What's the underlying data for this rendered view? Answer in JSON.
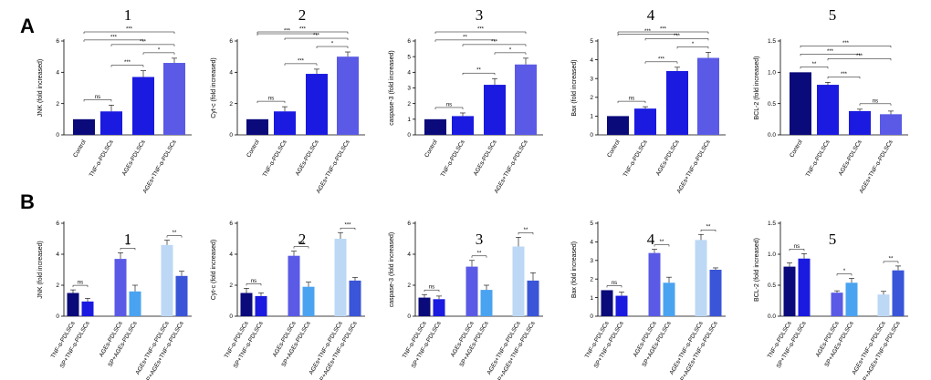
{
  "figure": {
    "row_labels": [
      "A",
      "B"
    ],
    "colors": {
      "navy": "#0a0a7a",
      "blue": "#1a1ae0",
      "periwinkle": "#5a5ae6",
      "light_blue": "#4aa3f0",
      "pale_blue": "#bcd8f5",
      "medium_blue": "#3a55d8"
    }
  },
  "chart_data": [
    {
      "id": "A1",
      "row": "A",
      "number": "1",
      "type": "bar",
      "ylabel": "JNK (fold increased)",
      "ylim": [
        0,
        6
      ],
      "yticks": [
        0,
        2,
        4,
        6
      ],
      "categories": [
        "Control",
        "TNF-α-PDLSCs",
        "AGEs-PDLSCs",
        "AGEs+TNF-α-PDLSCs"
      ],
      "values": [
        1.0,
        1.5,
        3.7,
        4.6
      ],
      "errors": [
        0.0,
        0.4,
        0.4,
        0.3
      ],
      "colors": [
        "#0a0a7a",
        "#1a1ae0",
        "#1a1ae0",
        "#5a5ae6"
      ],
      "comparisons": [
        {
          "from": 0,
          "to": 1,
          "label": "ns"
        },
        {
          "from": 0,
          "to": 2,
          "label": "***"
        },
        {
          "from": 1,
          "to": 2,
          "label": "***"
        },
        {
          "from": 2,
          "to": 3,
          "label": "*"
        },
        {
          "from": 1,
          "to": 3,
          "label": "***"
        },
        {
          "from": 0,
          "to": 3,
          "label": "***"
        }
      ]
    },
    {
      "id": "A2",
      "row": "A",
      "number": "2",
      "type": "bar",
      "ylabel": "Cyt-c (fold increased)",
      "ylim": [
        0,
        6
      ],
      "yticks": [
        0,
        2,
        4,
        6
      ],
      "categories": [
        "Control",
        "TNF-α-PDLSCs",
        "AGEs-PDLSCs",
        "AGEs+TNF-α-PDLSCs"
      ],
      "values": [
        1.0,
        1.5,
        3.9,
        5.0
      ],
      "errors": [
        0.0,
        0.3,
        0.3,
        0.3
      ],
      "colors": [
        "#0a0a7a",
        "#1a1ae0",
        "#1a1ae0",
        "#5a5ae6"
      ],
      "comparisons": [
        {
          "from": 0,
          "to": 1,
          "label": "ns"
        },
        {
          "from": 0,
          "to": 2,
          "label": "***"
        },
        {
          "from": 1,
          "to": 2,
          "label": "***"
        },
        {
          "from": 2,
          "to": 3,
          "label": "*"
        },
        {
          "from": 1,
          "to": 3,
          "label": "***"
        },
        {
          "from": 0,
          "to": 3,
          "label": "***"
        }
      ]
    },
    {
      "id": "A3",
      "row": "A",
      "number": "3",
      "type": "bar",
      "ylabel": "caspase-3 (fold increased)",
      "ylim": [
        0,
        6
      ],
      "yticks": [
        0,
        1,
        2,
        3,
        4,
        5,
        6
      ],
      "categories": [
        "Control",
        "TNF-α-PDLSCs",
        "AGEs-PDLSCs",
        "AGEs+TNF-α-PDLSCs"
      ],
      "values": [
        1.0,
        1.2,
        3.2,
        4.5
      ],
      "errors": [
        0.0,
        0.2,
        0.4,
        0.4
      ],
      "colors": [
        "#0a0a7a",
        "#1a1ae0",
        "#1a1ae0",
        "#5a5ae6"
      ],
      "comparisons": [
        {
          "from": 0,
          "to": 1,
          "label": "ns"
        },
        {
          "from": 0,
          "to": 2,
          "label": "**"
        },
        {
          "from": 1,
          "to": 2,
          "label": "**"
        },
        {
          "from": 2,
          "to": 3,
          "label": "*"
        },
        {
          "from": 1,
          "to": 3,
          "label": "***"
        },
        {
          "from": 0,
          "to": 3,
          "label": "***"
        }
      ]
    },
    {
      "id": "A4",
      "row": "A",
      "number": "4",
      "type": "bar",
      "ylabel": "Bax (fold increased)",
      "ylim": [
        0,
        5
      ],
      "yticks": [
        0,
        1,
        2,
        3,
        4,
        5
      ],
      "categories": [
        "Control",
        "TNF-α-PDLSCs",
        "AGEs-PDLSCs",
        "AGEs+TNF-α-PDLSCs"
      ],
      "values": [
        1.0,
        1.4,
        3.4,
        4.1
      ],
      "errors": [
        0.0,
        0.1,
        0.2,
        0.3
      ],
      "colors": [
        "#0a0a7a",
        "#1a1ae0",
        "#1a1ae0",
        "#5a5ae6"
      ],
      "comparisons": [
        {
          "from": 0,
          "to": 1,
          "label": "ns"
        },
        {
          "from": 0,
          "to": 2,
          "label": "***"
        },
        {
          "from": 1,
          "to": 2,
          "label": "***"
        },
        {
          "from": 2,
          "to": 3,
          "label": "*"
        },
        {
          "from": 1,
          "to": 3,
          "label": "***"
        },
        {
          "from": 0,
          "to": 3,
          "label": "***"
        }
      ]
    },
    {
      "id": "A5",
      "row": "A",
      "number": "5",
      "type": "bar",
      "ylabel": "BCL-2 (fold increased)",
      "ylim": [
        0,
        1.5
      ],
      "yticks": [
        0.0,
        0.5,
        1.0,
        1.5
      ],
      "categories": [
        "Control",
        "TNF-α-PDLSCs",
        "AGEs-PDLSCs",
        "AGEs+TNF-α-PDLSCs"
      ],
      "values": [
        1.0,
        0.8,
        0.38,
        0.33
      ],
      "errors": [
        0.0,
        0.04,
        0.03,
        0.05
      ],
      "colors": [
        "#0a0a7a",
        "#1a1ae0",
        "#1a1ae0",
        "#5a5ae6"
      ],
      "comparisons": [
        {
          "from": 2,
          "to": 3,
          "label": "ns"
        },
        {
          "from": 0,
          "to": 1,
          "label": "**"
        },
        {
          "from": 1,
          "to": 2,
          "label": "***"
        },
        {
          "from": 1,
          "to": 3,
          "label": "***"
        },
        {
          "from": 0,
          "to": 2,
          "label": "***"
        },
        {
          "from": 0,
          "to": 3,
          "label": "***"
        }
      ]
    },
    {
      "id": "B1",
      "row": "B",
      "number": "1",
      "type": "bar",
      "ylabel": "JNK (fold increased)",
      "ylim": [
        0,
        6
      ],
      "yticks": [
        0,
        2,
        4,
        6
      ],
      "categories": [
        "TNF-α-PDLSCs",
        "SP+TNF-α-PDLSCs",
        "AGEs-PDLSCs",
        "SP+AGEs-PDLSCs",
        "AGEs+TNF-α-PDLSCs",
        "SP+AGEs+TNF-α-PDLSCs"
      ],
      "values": [
        1.5,
        0.95,
        3.7,
        1.6,
        4.6,
        2.6
      ],
      "errors": [
        0.2,
        0.2,
        0.4,
        0.4,
        0.3,
        0.3
      ],
      "colors": [
        "#0a0a7a",
        "#1a1ae0",
        "#5a5ae6",
        "#4aa3f0",
        "#bcd8f5",
        "#3a55d8"
      ],
      "comparisons": [
        {
          "from": 0,
          "to": 1,
          "label": "ns"
        },
        {
          "from": 2,
          "to": 3,
          "label": "**"
        },
        {
          "from": 4,
          "to": 5,
          "label": "**"
        }
      ]
    },
    {
      "id": "B2",
      "row": "B",
      "number": "2",
      "type": "bar",
      "ylabel": "Cyt-c (fold increased)",
      "ylim": [
        0,
        6
      ],
      "yticks": [
        0,
        2,
        4,
        6
      ],
      "categories": [
        "TNF-α-PDLSCs",
        "SP+TNF-α-PDLSCs",
        "AGEs-PDLSCs",
        "SP+AGEs-PDLSCs",
        "AGEs+TNF-α-PDLSCs",
        "SP+AGEs+TNF-α-PDLSCs"
      ],
      "values": [
        1.5,
        1.3,
        3.9,
        1.9,
        5.0,
        2.3
      ],
      "errors": [
        0.3,
        0.2,
        0.3,
        0.3,
        0.4,
        0.2
      ],
      "colors": [
        "#0a0a7a",
        "#1a1ae0",
        "#5a5ae6",
        "#4aa3f0",
        "#bcd8f5",
        "#3a55d8"
      ],
      "comparisons": [
        {
          "from": 0,
          "to": 1,
          "label": "ns"
        },
        {
          "from": 2,
          "to": 3,
          "label": "***"
        },
        {
          "from": 4,
          "to": 5,
          "label": "***"
        }
      ]
    },
    {
      "id": "B3",
      "row": "B",
      "number": "3",
      "type": "bar",
      "ylabel": "caspase-3 (fold increased)",
      "ylim": [
        0,
        6
      ],
      "yticks": [
        0,
        2,
        4,
        6
      ],
      "categories": [
        "TNF-α-PDLSCs",
        "SP+TNF-α-PDLSCs",
        "AGEs-PDLSCs",
        "SP+AGEs-PDLSCs",
        "AGEs+TNF-α-PDLSCs",
        "SP+AGEs+TNF-α-PDLSCs"
      ],
      "values": [
        1.2,
        1.1,
        3.2,
        1.7,
        4.5,
        2.3
      ],
      "errors": [
        0.2,
        0.2,
        0.4,
        0.3,
        0.6,
        0.5
      ],
      "colors": [
        "#0a0a7a",
        "#1a1ae0",
        "#5a5ae6",
        "#4aa3f0",
        "#bcd8f5",
        "#3a55d8"
      ],
      "comparisons": [
        {
          "from": 0,
          "to": 1,
          "label": "ns"
        },
        {
          "from": 2,
          "to": 3,
          "label": "**"
        },
        {
          "from": 4,
          "to": 5,
          "label": "**"
        }
      ]
    },
    {
      "id": "B4",
      "row": "B",
      "number": "4",
      "type": "bar",
      "ylabel": "Bax (fold increased)",
      "ylim": [
        0,
        5
      ],
      "yticks": [
        0,
        1,
        2,
        3,
        4,
        5
      ],
      "categories": [
        "TNF-α-PDLSCs",
        "SP+TNF-α-PDLSCs",
        "AGEs-PDLSCs",
        "SP+AGEs-PDLSCs",
        "AGEs+TNF-α-PDLSCs",
        "SP+AGEs+TNF-α-PDLSCs"
      ],
      "values": [
        1.4,
        1.1,
        3.4,
        1.8,
        4.1,
        2.5
      ],
      "errors": [
        0.0,
        0.2,
        0.2,
        0.3,
        0.3,
        0.1
      ],
      "colors": [
        "#0a0a7a",
        "#1a1ae0",
        "#5a5ae6",
        "#4aa3f0",
        "#bcd8f5",
        "#3a55d8"
      ],
      "comparisons": [
        {
          "from": 0,
          "to": 1,
          "label": "ns"
        },
        {
          "from": 2,
          "to": 3,
          "label": "**"
        },
        {
          "from": 4,
          "to": 5,
          "label": "**"
        }
      ]
    },
    {
      "id": "B5",
      "row": "B",
      "number": "5",
      "type": "bar",
      "ylabel": "BCL-2 (fold increased)",
      "ylim": [
        0,
        1.5
      ],
      "yticks": [
        0.0,
        0.5,
        1.0,
        1.5
      ],
      "categories": [
        "TNF-α-PDLSCs",
        "SP+TNF-α-PDLSCs",
        "AGEs-PDLSCs",
        "SP+AGEs-PDLSCs",
        "AGEs+TNF-α-PDLSCs",
        "SP+AGEs+TNF-α-PDLSCs"
      ],
      "values": [
        0.8,
        0.93,
        0.38,
        0.54,
        0.35,
        0.74
      ],
      "errors": [
        0.06,
        0.08,
        0.03,
        0.07,
        0.05,
        0.07
      ],
      "colors": [
        "#0a0a7a",
        "#1a1ae0",
        "#5a5ae6",
        "#4aa3f0",
        "#bcd8f5",
        "#3a55d8"
      ],
      "comparisons": [
        {
          "from": 0,
          "to": 1,
          "label": "ns"
        },
        {
          "from": 2,
          "to": 3,
          "label": "*"
        },
        {
          "from": 4,
          "to": 5,
          "label": "**"
        }
      ]
    }
  ]
}
